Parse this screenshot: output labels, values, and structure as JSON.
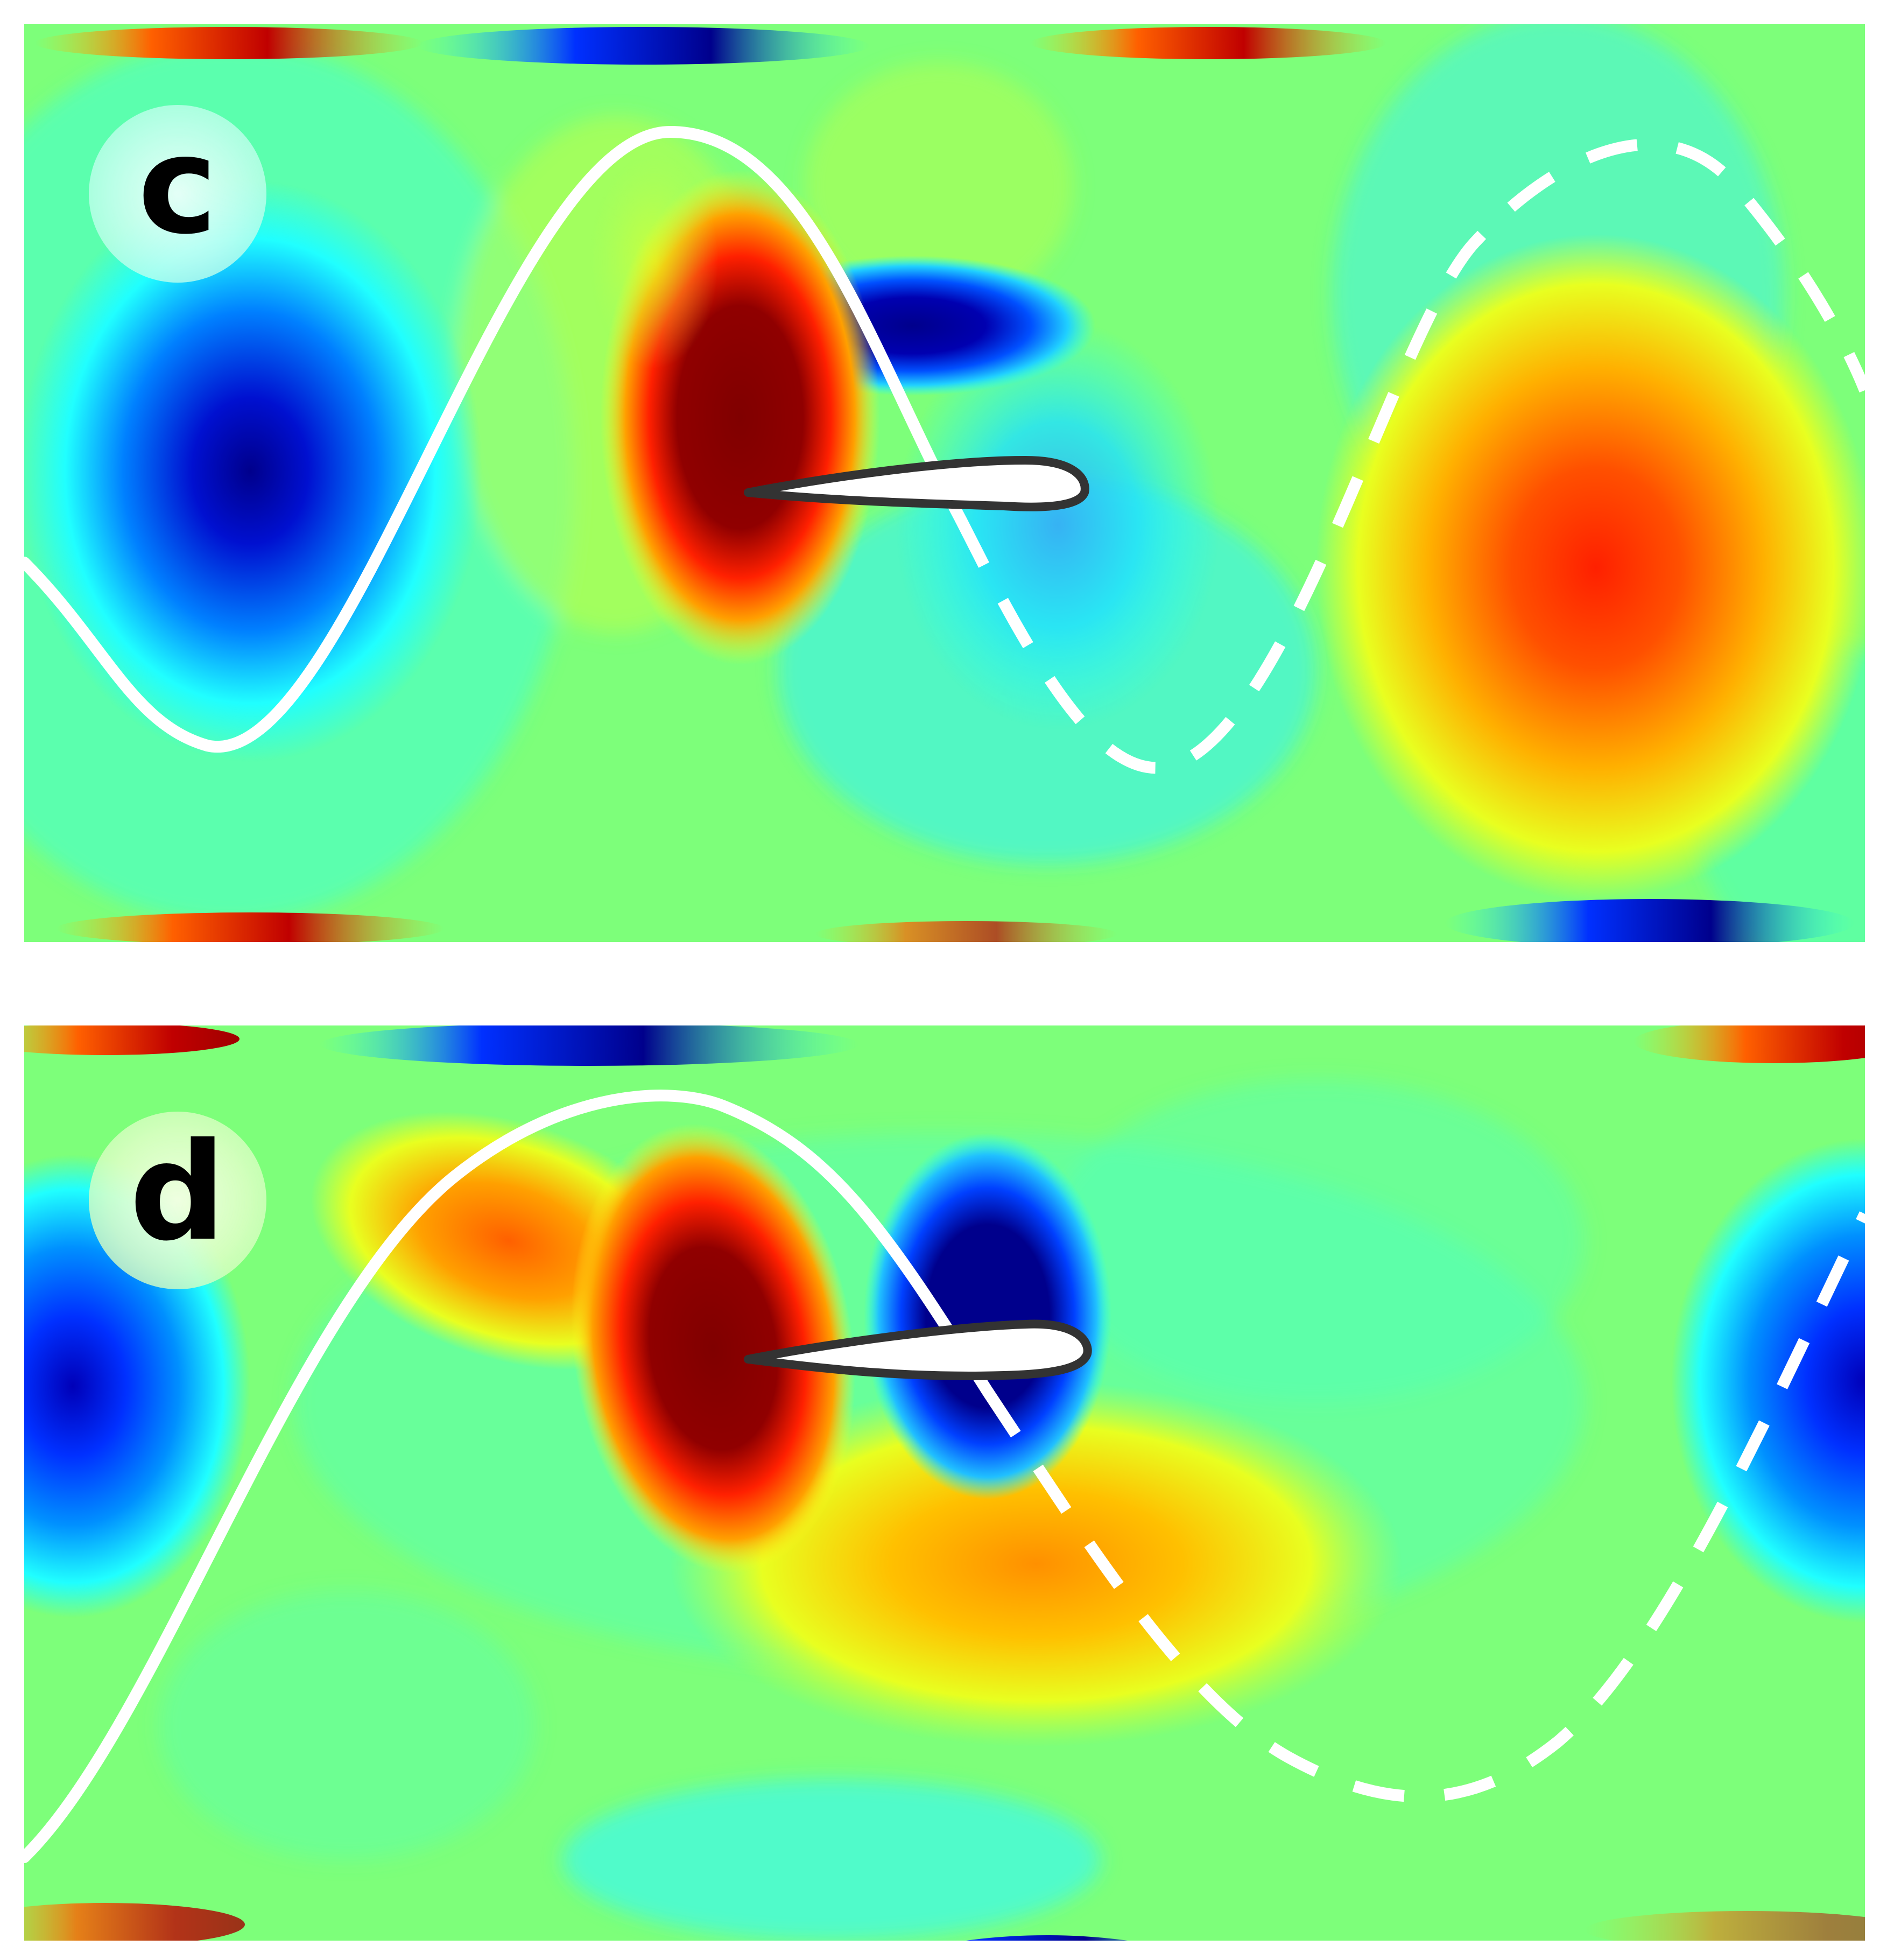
{
  "figure": {
    "panels": [
      {
        "label": "c"
      },
      {
        "label": "d"
      }
    ],
    "colors": {
      "background_field": "#7dff7a",
      "dark_red": "#800000",
      "red": "#ff2000",
      "orange": "#ff9000",
      "yellow": "#e8ff20",
      "cyan": "#20ffff",
      "blue": "#0040ff",
      "dark_blue": "#00008c",
      "trajectory": "#ffffff",
      "airfoil_outline": "#333333"
    },
    "icons": [
      "airfoil-shape",
      "solid-trajectory-line",
      "dashed-trajectory-line"
    ]
  }
}
